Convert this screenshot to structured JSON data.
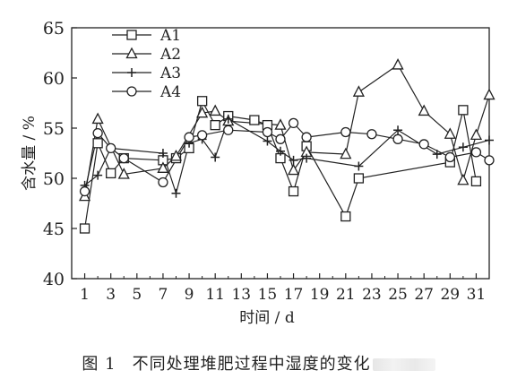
{
  "chart_data": {
    "type": "line",
    "ylabel": "含水量 / %",
    "xlabel": "时间 / d",
    "xlim": [
      0,
      32
    ],
    "ylim": [
      40,
      65
    ],
    "xticks": [
      "1",
      "3",
      "5",
      "7",
      "9",
      "11",
      "13",
      "15",
      "17",
      "19",
      "21",
      "23",
      "25",
      "27",
      "29",
      "31"
    ],
    "yticks": [
      "40",
      "45",
      "50",
      "55",
      "60",
      "65"
    ],
    "grid": false,
    "legend_position": "top-left",
    "series": [
      {
        "name": "A1",
        "marker": "square",
        "x": [
          1,
          2,
          3,
          4,
          7,
          8,
          9,
          10,
          11,
          12,
          14,
          15,
          16,
          17,
          18,
          21,
          22,
          29,
          30,
          31
        ],
        "y": [
          45.0,
          53.5,
          50.5,
          52.0,
          51.8,
          52.0,
          53.0,
          57.7,
          55.3,
          56.2,
          55.8,
          55.3,
          52.0,
          48.7,
          53.2,
          46.2,
          50.0,
          51.6,
          56.8,
          49.7
        ]
      },
      {
        "name": "A2",
        "marker": "triangle",
        "x": [
          1,
          2,
          4,
          7,
          8,
          10,
          11,
          12,
          16,
          17,
          18,
          21,
          22,
          25,
          27,
          29,
          30,
          31,
          32
        ],
        "y": [
          48.2,
          55.9,
          50.4,
          51.0,
          52.2,
          56.5,
          56.7,
          55.7,
          55.3,
          50.8,
          52.6,
          52.4,
          58.6,
          61.3,
          56.7,
          54.4,
          49.8,
          54.3,
          58.3
        ]
      },
      {
        "name": "A3",
        "marker": "plus",
        "x": [
          1,
          2,
          3,
          7,
          8,
          9,
          10,
          11,
          12,
          15,
          16,
          17,
          18,
          22,
          25,
          28,
          30,
          32
        ],
        "y": [
          49.3,
          50.3,
          53.0,
          52.5,
          48.5,
          53.5,
          53.9,
          52.1,
          55.9,
          53.7,
          52.7,
          51.8,
          52.0,
          51.2,
          54.8,
          52.4,
          53.1,
          53.8
        ]
      },
      {
        "name": "A4",
        "marker": "circle",
        "x": [
          1,
          2,
          3,
          4,
          7,
          9,
          10,
          12,
          15,
          16,
          17,
          18,
          21,
          23,
          25,
          27,
          29,
          31,
          32
        ],
        "y": [
          48.7,
          54.5,
          53.0,
          52.0,
          49.6,
          54.1,
          54.3,
          54.8,
          54.6,
          53.9,
          55.5,
          54.1,
          54.6,
          54.4,
          53.9,
          53.4,
          52.1,
          52.6,
          51.8
        ]
      }
    ]
  },
  "caption": {
    "figure_no": "图 1",
    "text": "不同处理堆肥过程中湿度的变化"
  }
}
